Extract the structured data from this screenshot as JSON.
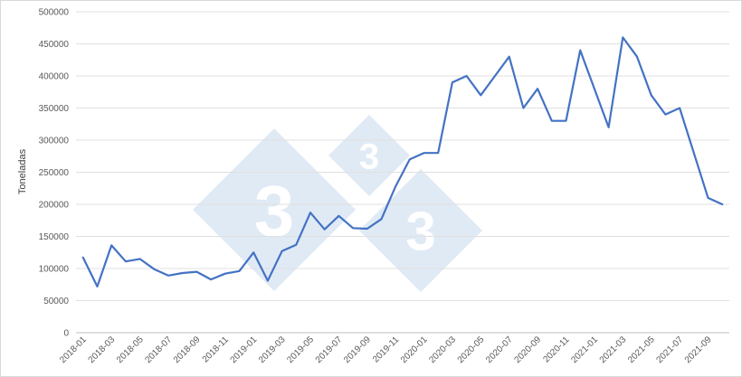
{
  "chart_data": {
    "type": "line",
    "title": "",
    "xlabel": "",
    "ylabel": "Toneladas",
    "ylim": [
      0,
      500000
    ],
    "y_ticks": [
      0,
      50000,
      100000,
      150000,
      200000,
      250000,
      300000,
      350000,
      400000,
      450000,
      500000
    ],
    "y_tick_labels": [
      "0",
      "50000",
      "100000",
      "150000",
      "200000",
      "250000",
      "300000",
      "350000",
      "400000",
      "450000",
      "500000"
    ],
    "grid": true,
    "legend": "none",
    "x": [
      "2018-01",
      "2018-02",
      "2018-03",
      "2018-04",
      "2018-05",
      "2018-06",
      "2018-07",
      "2018-08",
      "2018-09",
      "2018-10",
      "2018-11",
      "2018-12",
      "2019-01",
      "2019-02",
      "2019-03",
      "2019-04",
      "2019-05",
      "2019-06",
      "2019-07",
      "2019-08",
      "2019-09",
      "2019-10",
      "2019-11",
      "2019-12",
      "2020-01",
      "2020-02",
      "2020-03",
      "2020-04",
      "2020-05",
      "2020-06",
      "2020-07",
      "2020-08",
      "2020-09",
      "2020-10",
      "2020-11",
      "2020-12",
      "2021-01",
      "2021-02",
      "2021-03",
      "2021-04",
      "2021-05",
      "2021-06",
      "2021-07",
      "2021-08",
      "2021-09",
      "2021-10"
    ],
    "x_tick_labels": [
      "2018-01",
      "2018-03",
      "2018-05",
      "2018-07",
      "2018-09",
      "2018-11",
      "2019-01",
      "2019-03",
      "2019-05",
      "2019-07",
      "2019-09",
      "2019-11",
      "2020-01",
      "2020-03",
      "2020-05",
      "2020-07",
      "2020-09",
      "2020-11",
      "2021-01",
      "2021-03",
      "2021-05",
      "2021-07",
      "2021-09"
    ],
    "series": [
      {
        "color": "#4472c4",
        "values": [
          117000,
          72000,
          136000,
          111000,
          115000,
          99000,
          89000,
          93000,
          95000,
          83000,
          92000,
          96000,
          125000,
          81000,
          127000,
          137000,
          187000,
          161000,
          182000,
          163000,
          162000,
          177000,
          228000,
          270000,
          280000,
          280000,
          390000,
          400000,
          370000,
          400000,
          430000,
          350000,
          380000,
          330000,
          330000,
          440000,
          380000,
          320000,
          460000,
          430000,
          370000,
          340000,
          350000,
          280000,
          210000,
          200000
        ]
      }
    ]
  },
  "watermark": {
    "glyph": "3",
    "color": "#dbe6f3"
  }
}
